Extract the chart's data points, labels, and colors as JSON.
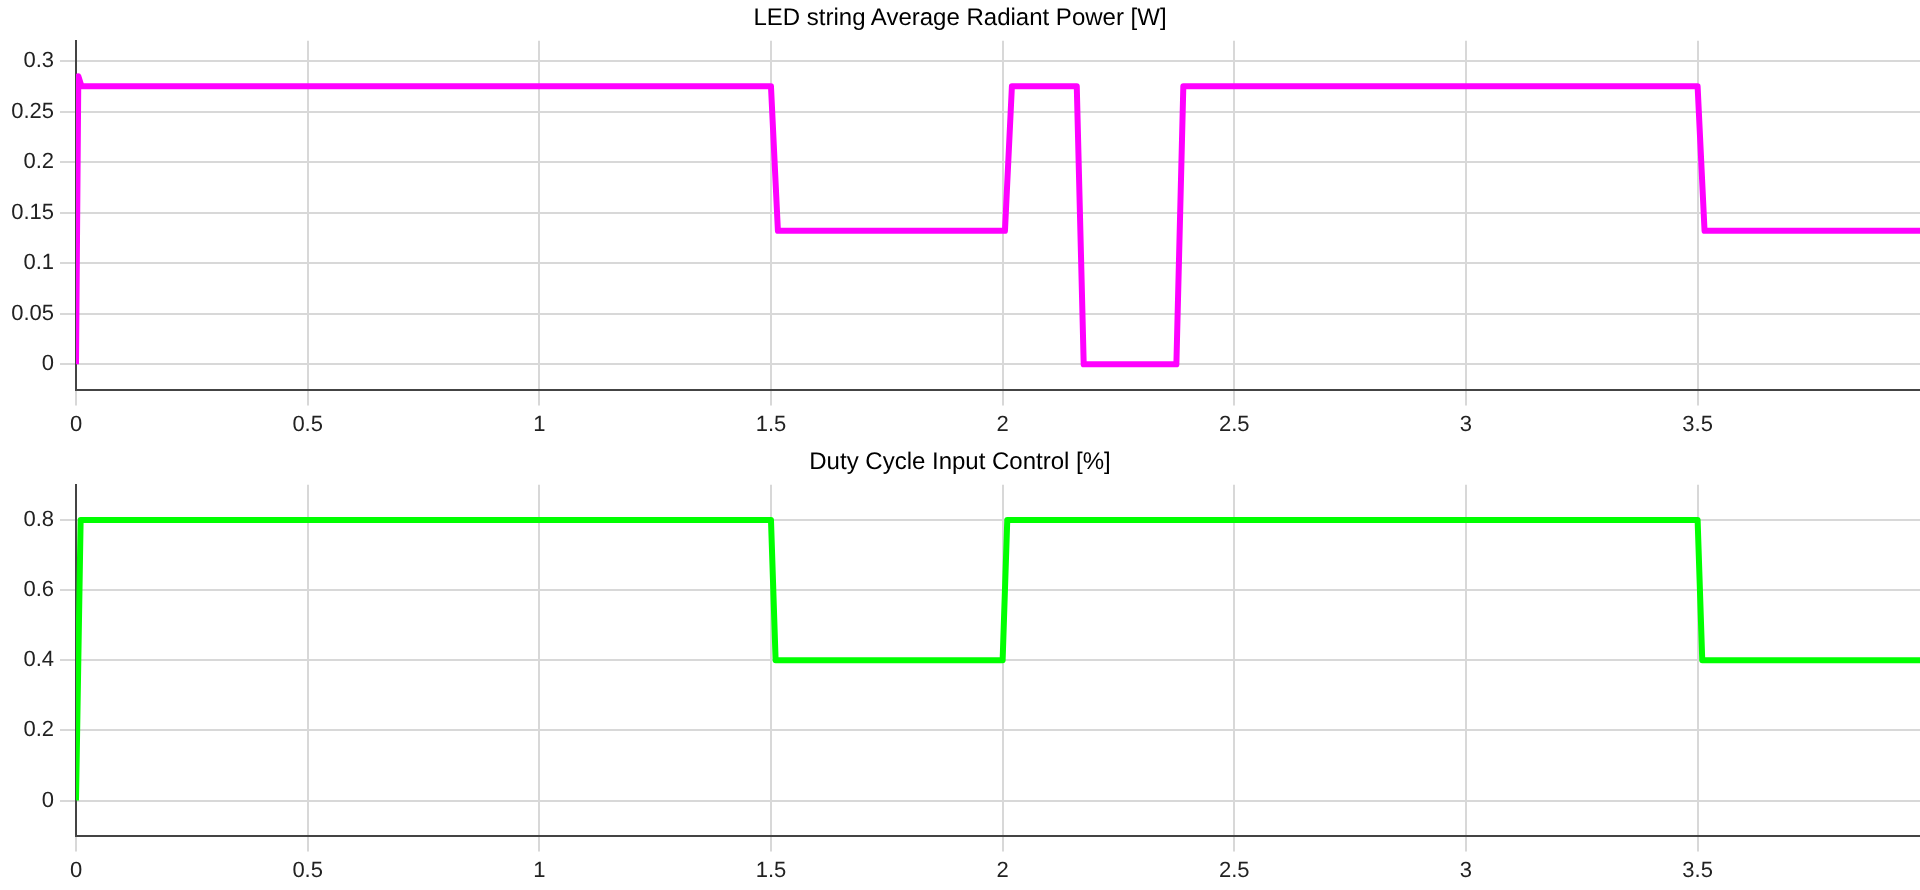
{
  "chart_data": [
    {
      "type": "line",
      "title": "LED string Average Radiant Power [W]",
      "x": [
        0,
        0.005,
        0.012,
        0.02,
        1.5,
        1.515,
        2.005,
        2.02,
        2.16,
        2.175,
        2.375,
        2.39,
        3.5,
        3.515,
        3.98
      ],
      "series": [
        {
          "color": "#ff00ff",
          "values": [
            0,
            0.285,
            0.275,
            0.275,
            0.275,
            0.132,
            0.132,
            0.275,
            0.275,
            0,
            0,
            0.275,
            0.275,
            0.132,
            0.132
          ]
        }
      ],
      "xlim": [
        0,
        3.98
      ],
      "xticks": [
        0,
        0.5,
        1,
        1.5,
        2,
        2.5,
        3,
        3.5
      ],
      "ylim": [
        -0.025,
        0.32
      ],
      "yticks": [
        0,
        0.05,
        0.1,
        0.15,
        0.2,
        0.25,
        0.3
      ],
      "grid": true,
      "legend": false
    },
    {
      "type": "line",
      "title": "Duty Cycle Input Control [%]",
      "x": [
        0,
        0.01,
        1.5,
        1.51,
        2.0,
        2.01,
        3.5,
        3.51,
        3.98
      ],
      "series": [
        {
          "color": "#00ff00",
          "values": [
            0,
            0.8,
            0.8,
            0.4,
            0.4,
            0.8,
            0.8,
            0.4,
            0.4
          ]
        }
      ],
      "xlim": [
        0,
        3.98
      ],
      "xticks": [
        0,
        0.5,
        1,
        1.5,
        2,
        2.5,
        3,
        3.5
      ],
      "ylim": [
        -0.1,
        0.9
      ],
      "yticks": [
        0,
        0.2,
        0.4,
        0.6,
        0.8
      ],
      "grid": true,
      "legend": false
    }
  ]
}
